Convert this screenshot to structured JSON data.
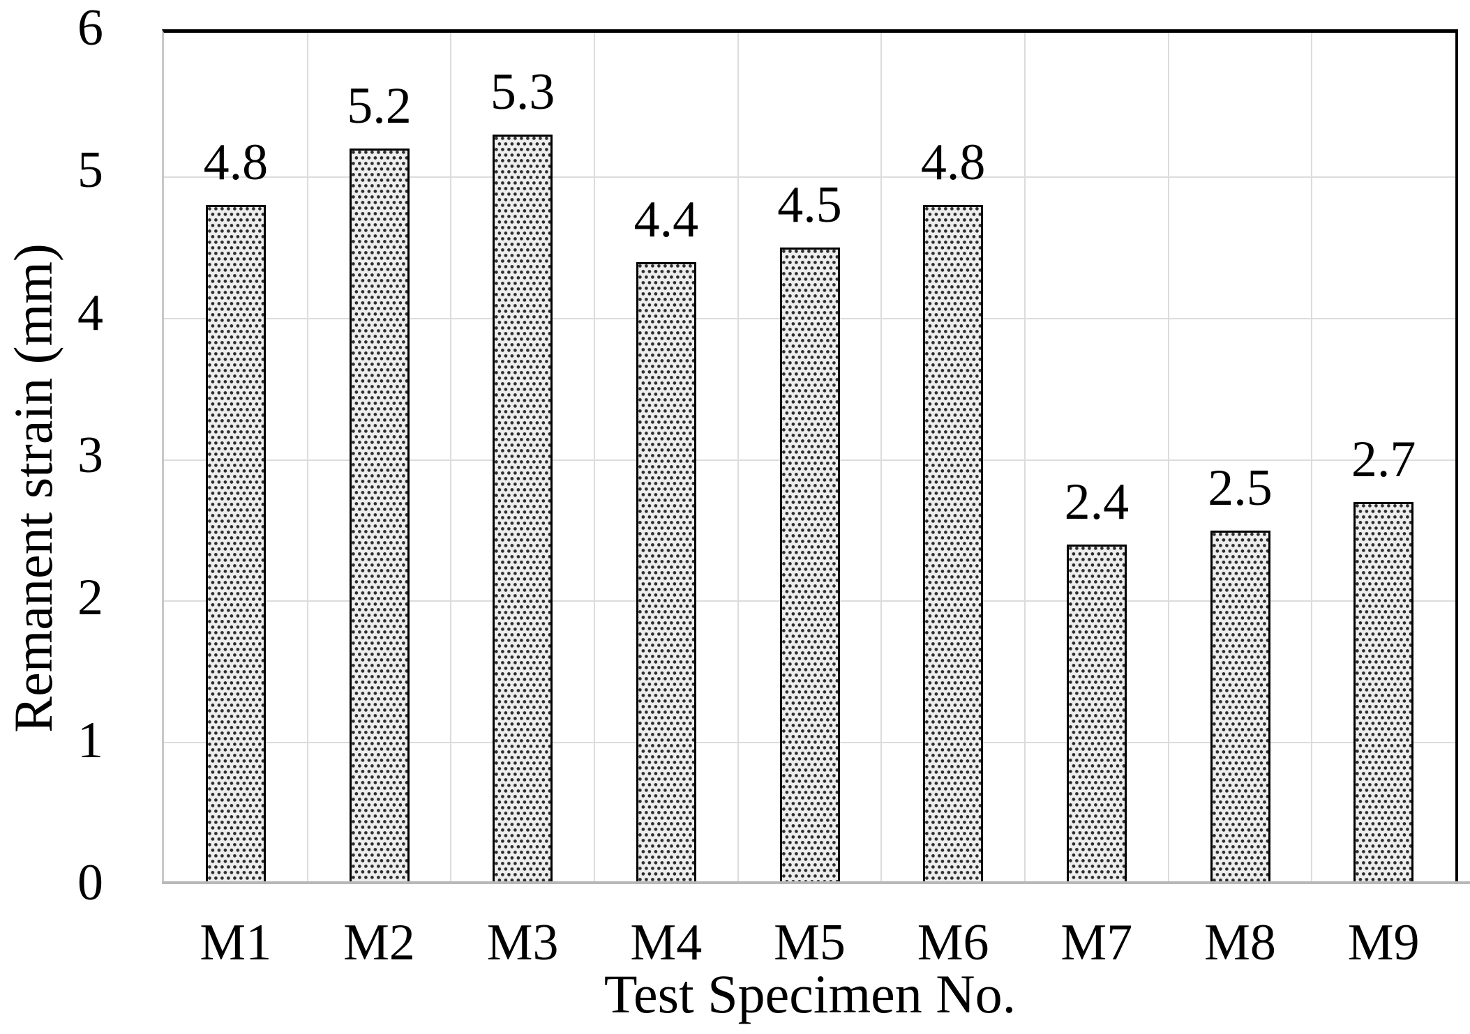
{
  "chart_data": {
    "type": "bar",
    "title": "",
    "categories": [
      "M1",
      "M2",
      "M3",
      "M4",
      "M5",
      "M6",
      "M7",
      "M8",
      "M9"
    ],
    "values": [
      4.8,
      5.2,
      5.3,
      4.4,
      4.5,
      4.8,
      2.4,
      2.5,
      2.7
    ],
    "data_labels": [
      "4.8",
      "5.2",
      "5.3",
      "4.4",
      "4.5",
      "4.8",
      "2.4",
      "2.5",
      "2.7"
    ],
    "xlabel": "Test Specimen No.",
    "ylabel": "Remanent strain (mm)",
    "ylim": [
      0,
      6
    ],
    "yticks": [
      0,
      1,
      2,
      3,
      4,
      5,
      6
    ],
    "grid": true,
    "legend_position": "none",
    "bar_fill_style": "dotted-pattern",
    "colors": {
      "pattern_dot": "#2e2e2e",
      "pattern_bg": "#ededed",
      "bar_border": "#000000",
      "gridline": "#dcdcdc",
      "axis_line_gray": "#b8b8b8",
      "axis_border_black": "#000000",
      "text": "#000000",
      "background": "#ffffff"
    }
  }
}
